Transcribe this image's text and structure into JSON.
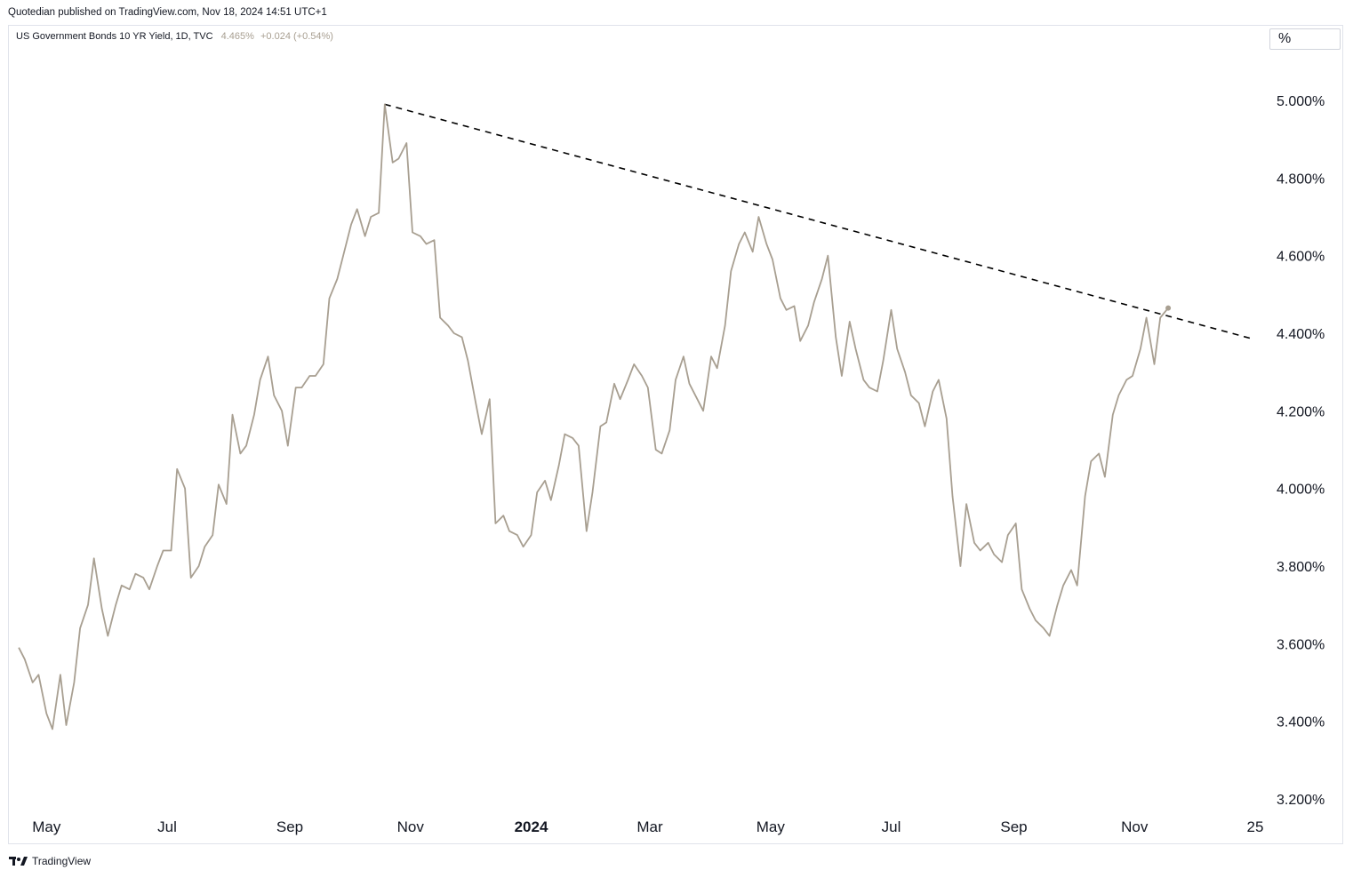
{
  "header": {
    "published": "Quotedian published on TradingView.com, Nov 18, 2024 14:51 UTC+1"
  },
  "legend": {
    "symbol": "US Government Bonds 10 YR Yield, 1D, TVC",
    "last": "4.465%",
    "change": "+0.024 (+0.54%)"
  },
  "scale_button": {
    "label": "%"
  },
  "footer": {
    "brand": "TradingView"
  },
  "colors": {
    "series": "#a89f91",
    "trendline": "#000000",
    "axis_text": "#131722"
  },
  "chart_data": {
    "type": "line",
    "title": "US Government Bonds 10 YR Yield, 1D, TVC",
    "y_unit": "%",
    "ylim": [
      3.2,
      5.0
    ],
    "y_ticks": [
      "5.000%",
      "4.800%",
      "4.600%",
      "4.400%",
      "4.200%",
      "4.000%",
      "3.800%",
      "3.600%",
      "3.400%",
      "3.200%"
    ],
    "x_ticks": [
      {
        "label": "May",
        "date": "2023-05-01",
        "bold": false
      },
      {
        "label": "Jul",
        "date": "2023-07-01",
        "bold": false
      },
      {
        "label": "Sep",
        "date": "2023-09-01",
        "bold": false
      },
      {
        "label": "Nov",
        "date": "2023-11-01",
        "bold": false
      },
      {
        "label": "2024",
        "date": "2024-01-01",
        "bold": true
      },
      {
        "label": "Mar",
        "date": "2024-03-01",
        "bold": false
      },
      {
        "label": "May",
        "date": "2024-05-01",
        "bold": false
      },
      {
        "label": "Jul",
        "date": "2024-07-01",
        "bold": false
      },
      {
        "label": "Sep",
        "date": "2024-09-01",
        "bold": false
      },
      {
        "label": "Nov",
        "date": "2024-11-01",
        "bold": false
      },
      {
        "label": "25",
        "date": "2025-01-01",
        "bold": false
      }
    ],
    "series": [
      {
        "values": [
          [
            "2023-04-17",
            3.59
          ],
          [
            "2023-04-20",
            3.56
          ],
          [
            "2023-04-24",
            3.5
          ],
          [
            "2023-04-27",
            3.52
          ],
          [
            "2023-05-01",
            3.42
          ],
          [
            "2023-05-04",
            3.38
          ],
          [
            "2023-05-08",
            3.52
          ],
          [
            "2023-05-11",
            3.39
          ],
          [
            "2023-05-15",
            3.5
          ],
          [
            "2023-05-18",
            3.64
          ],
          [
            "2023-05-22",
            3.7
          ],
          [
            "2023-05-25",
            3.82
          ],
          [
            "2023-05-29",
            3.69
          ],
          [
            "2023-06-01",
            3.62
          ],
          [
            "2023-06-05",
            3.7
          ],
          [
            "2023-06-08",
            3.75
          ],
          [
            "2023-06-12",
            3.74
          ],
          [
            "2023-06-15",
            3.78
          ],
          [
            "2023-06-19",
            3.77
          ],
          [
            "2023-06-22",
            3.74
          ],
          [
            "2023-06-26",
            3.8
          ],
          [
            "2023-06-29",
            3.84
          ],
          [
            "2023-07-03",
            3.84
          ],
          [
            "2023-07-06",
            4.05
          ],
          [
            "2023-07-10",
            4.0
          ],
          [
            "2023-07-13",
            3.77
          ],
          [
            "2023-07-17",
            3.8
          ],
          [
            "2023-07-20",
            3.85
          ],
          [
            "2023-07-24",
            3.88
          ],
          [
            "2023-07-27",
            4.01
          ],
          [
            "2023-07-31",
            3.96
          ],
          [
            "2023-08-03",
            4.19
          ],
          [
            "2023-08-07",
            4.09
          ],
          [
            "2023-08-10",
            4.11
          ],
          [
            "2023-08-14",
            4.19
          ],
          [
            "2023-08-17",
            4.28
          ],
          [
            "2023-08-21",
            4.34
          ],
          [
            "2023-08-24",
            4.24
          ],
          [
            "2023-08-28",
            4.2
          ],
          [
            "2023-08-31",
            4.11
          ],
          [
            "2023-09-04",
            4.26
          ],
          [
            "2023-09-07",
            4.26
          ],
          [
            "2023-09-11",
            4.29
          ],
          [
            "2023-09-14",
            4.29
          ],
          [
            "2023-09-18",
            4.32
          ],
          [
            "2023-09-21",
            4.49
          ],
          [
            "2023-09-25",
            4.54
          ],
          [
            "2023-09-28",
            4.6
          ],
          [
            "2023-10-02",
            4.68
          ],
          [
            "2023-10-05",
            4.72
          ],
          [
            "2023-10-09",
            4.65
          ],
          [
            "2023-10-12",
            4.7
          ],
          [
            "2023-10-16",
            4.71
          ],
          [
            "2023-10-19",
            4.99
          ],
          [
            "2023-10-23",
            4.84
          ],
          [
            "2023-10-26",
            4.85
          ],
          [
            "2023-10-30",
            4.89
          ],
          [
            "2023-11-02",
            4.66
          ],
          [
            "2023-11-06",
            4.65
          ],
          [
            "2023-11-09",
            4.63
          ],
          [
            "2023-11-13",
            4.64
          ],
          [
            "2023-11-16",
            4.44
          ],
          [
            "2023-11-20",
            4.42
          ],
          [
            "2023-11-23",
            4.4
          ],
          [
            "2023-11-27",
            4.39
          ],
          [
            "2023-11-30",
            4.33
          ],
          [
            "2023-12-04",
            4.22
          ],
          [
            "2023-12-07",
            4.14
          ],
          [
            "2023-12-11",
            4.23
          ],
          [
            "2023-12-14",
            3.91
          ],
          [
            "2023-12-18",
            3.93
          ],
          [
            "2023-12-21",
            3.89
          ],
          [
            "2023-12-25",
            3.88
          ],
          [
            "2023-12-28",
            3.85
          ],
          [
            "2024-01-01",
            3.88
          ],
          [
            "2024-01-04",
            3.99
          ],
          [
            "2024-01-08",
            4.02
          ],
          [
            "2024-01-11",
            3.97
          ],
          [
            "2024-01-15",
            4.06
          ],
          [
            "2024-01-18",
            4.14
          ],
          [
            "2024-01-22",
            4.13
          ],
          [
            "2024-01-25",
            4.11
          ],
          [
            "2024-01-29",
            3.89
          ],
          [
            "2024-02-01",
            3.99
          ],
          [
            "2024-02-05",
            4.16
          ],
          [
            "2024-02-08",
            4.17
          ],
          [
            "2024-02-12",
            4.27
          ],
          [
            "2024-02-15",
            4.23
          ],
          [
            "2024-02-19",
            4.28
          ],
          [
            "2024-02-22",
            4.32
          ],
          [
            "2024-02-26",
            4.29
          ],
          [
            "2024-02-29",
            4.26
          ],
          [
            "2024-03-04",
            4.1
          ],
          [
            "2024-03-07",
            4.09
          ],
          [
            "2024-03-11",
            4.15
          ],
          [
            "2024-03-14",
            4.28
          ],
          [
            "2024-03-18",
            4.34
          ],
          [
            "2024-03-21",
            4.27
          ],
          [
            "2024-03-25",
            4.23
          ],
          [
            "2024-03-28",
            4.2
          ],
          [
            "2024-04-01",
            4.34
          ],
          [
            "2024-04-04",
            4.31
          ],
          [
            "2024-04-08",
            4.42
          ],
          [
            "2024-04-11",
            4.56
          ],
          [
            "2024-04-15",
            4.63
          ],
          [
            "2024-04-18",
            4.66
          ],
          [
            "2024-04-22",
            4.61
          ],
          [
            "2024-04-25",
            4.7
          ],
          [
            "2024-04-29",
            4.63
          ],
          [
            "2024-05-02",
            4.59
          ],
          [
            "2024-05-06",
            4.49
          ],
          [
            "2024-05-09",
            4.46
          ],
          [
            "2024-05-13",
            4.47
          ],
          [
            "2024-05-16",
            4.38
          ],
          [
            "2024-05-20",
            4.42
          ],
          [
            "2024-05-23",
            4.48
          ],
          [
            "2024-05-27",
            4.54
          ],
          [
            "2024-05-30",
            4.6
          ],
          [
            "2024-06-03",
            4.39
          ],
          [
            "2024-06-06",
            4.29
          ],
          [
            "2024-06-10",
            4.43
          ],
          [
            "2024-06-13",
            4.36
          ],
          [
            "2024-06-17",
            4.28
          ],
          [
            "2024-06-20",
            4.26
          ],
          [
            "2024-06-24",
            4.25
          ],
          [
            "2024-06-27",
            4.33
          ],
          [
            "2024-07-01",
            4.46
          ],
          [
            "2024-07-04",
            4.36
          ],
          [
            "2024-07-08",
            4.3
          ],
          [
            "2024-07-11",
            4.24
          ],
          [
            "2024-07-15",
            4.22
          ],
          [
            "2024-07-18",
            4.16
          ],
          [
            "2024-07-22",
            4.25
          ],
          [
            "2024-07-25",
            4.28
          ],
          [
            "2024-07-29",
            4.18
          ],
          [
            "2024-08-01",
            3.98
          ],
          [
            "2024-08-05",
            3.8
          ],
          [
            "2024-08-08",
            3.96
          ],
          [
            "2024-08-12",
            3.86
          ],
          [
            "2024-08-15",
            3.84
          ],
          [
            "2024-08-19",
            3.86
          ],
          [
            "2024-08-22",
            3.83
          ],
          [
            "2024-08-26",
            3.81
          ],
          [
            "2024-08-29",
            3.88
          ],
          [
            "2024-09-02",
            3.91
          ],
          [
            "2024-09-05",
            3.74
          ],
          [
            "2024-09-09",
            3.69
          ],
          [
            "2024-09-12",
            3.66
          ],
          [
            "2024-09-16",
            3.64
          ],
          [
            "2024-09-19",
            3.62
          ],
          [
            "2024-09-23",
            3.7
          ],
          [
            "2024-09-26",
            3.75
          ],
          [
            "2024-09-30",
            3.79
          ],
          [
            "2024-10-03",
            3.75
          ],
          [
            "2024-10-07",
            3.98
          ],
          [
            "2024-10-10",
            4.07
          ],
          [
            "2024-10-14",
            4.09
          ],
          [
            "2024-10-17",
            4.03
          ],
          [
            "2024-10-21",
            4.19
          ],
          [
            "2024-10-24",
            4.24
          ],
          [
            "2024-10-28",
            4.28
          ],
          [
            "2024-10-31",
            4.29
          ],
          [
            "2024-11-04",
            4.36
          ],
          [
            "2024-11-07",
            4.44
          ],
          [
            "2024-11-11",
            4.32
          ],
          [
            "2024-11-14",
            4.44
          ],
          [
            "2024-11-18",
            4.465
          ]
        ]
      }
    ],
    "trendline": {
      "from": [
        "2023-10-19",
        4.99
      ],
      "to": [
        "2024-12-31",
        4.385
      ],
      "style": "dashed"
    }
  }
}
